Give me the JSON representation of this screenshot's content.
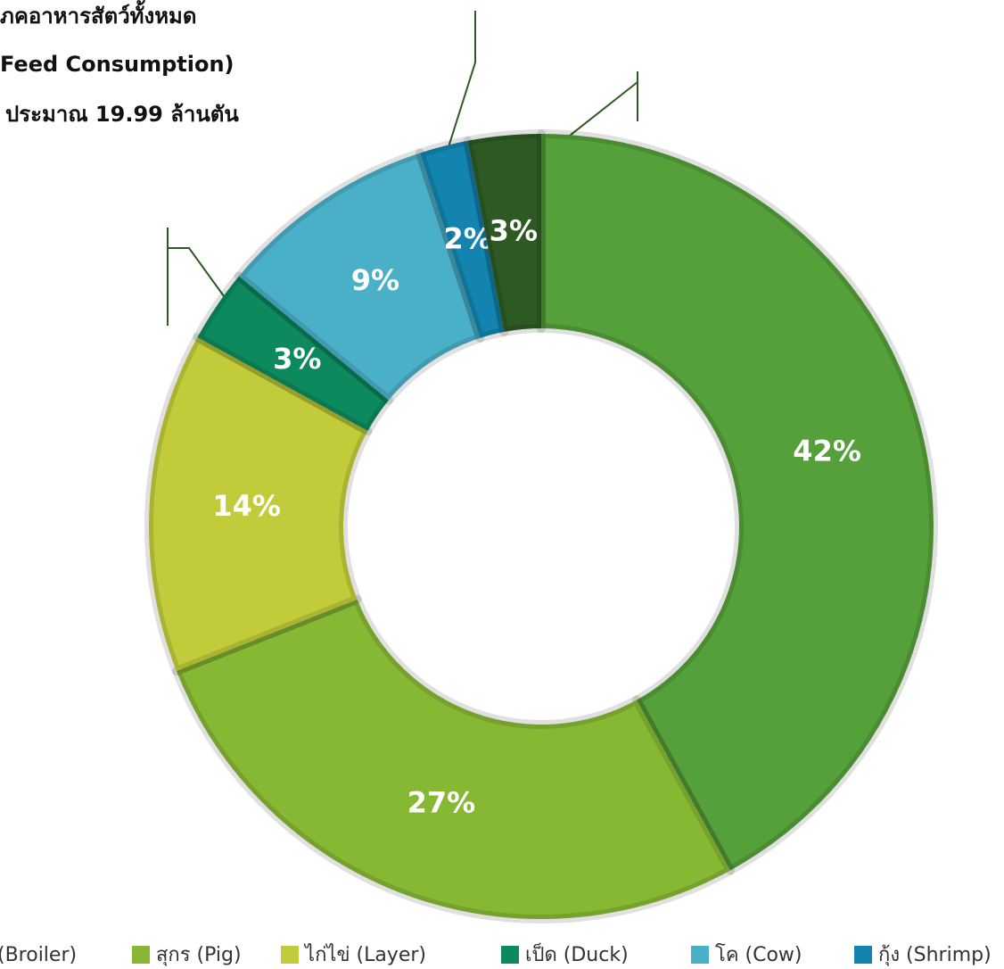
{
  "chart_data": {
    "type": "pie",
    "title_lines": [
      "ภคอาหารสัตว์ทั้งหมด",
      "Feed Consumption)",
      "ประมาณ 19.99 ล้านตัน"
    ],
    "categories": [
      "(Broiler)",
      "สุกร (Pig)",
      "ไก่ไข่ (Layer)",
      "เป็ด (Duck)",
      "โค (Cow)",
      "กุ้ง (Shrimp)",
      null
    ],
    "values": [
      42,
      27,
      14,
      3,
      9,
      2,
      3
    ],
    "value_labels": [
      "42%",
      "27%",
      "14%",
      "3%",
      "9%",
      "2%",
      "3%"
    ],
    "colors": [
      "#55a03a",
      "#86b833",
      "#c2cc3a",
      "#0c8a5e",
      "#4ab0c8",
      "#1383b0",
      "#2d5a22"
    ],
    "donut": true
  }
}
